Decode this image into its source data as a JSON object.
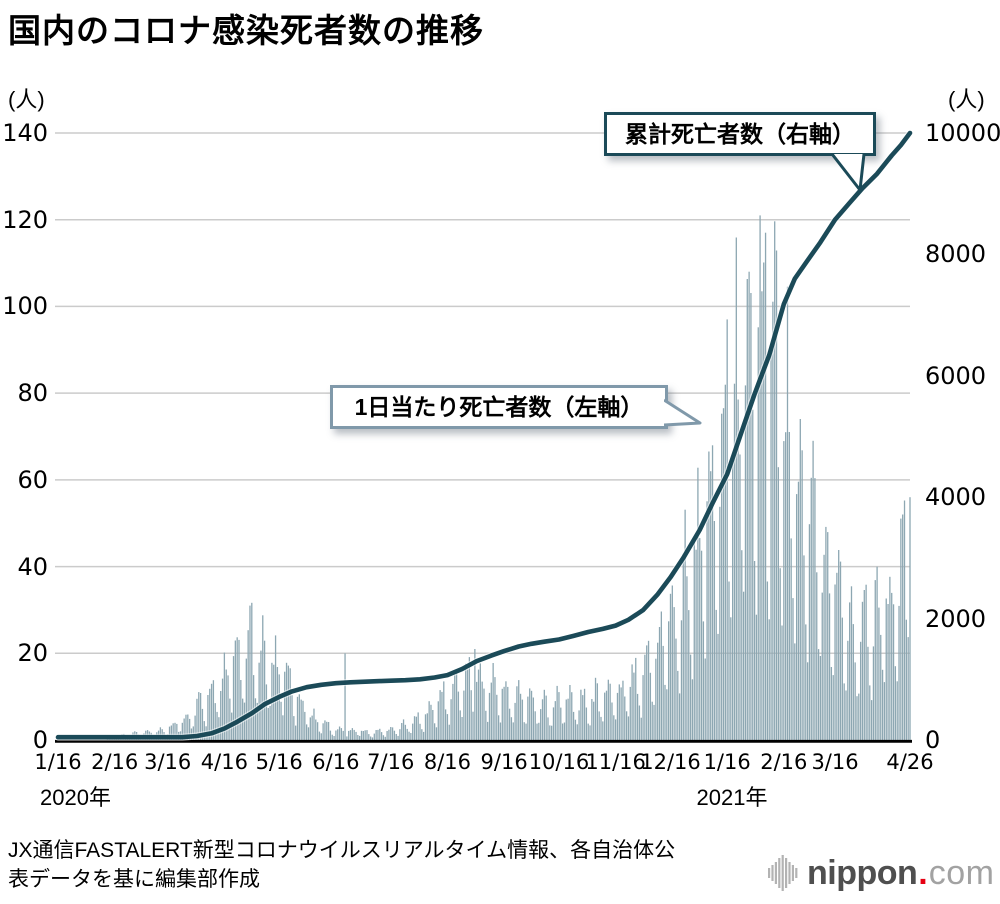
{
  "title": "国内のコロナ感染死者数の推移",
  "callouts": {
    "cumulative": "累計死亡者数（右軸）",
    "daily": "1日当たり死亡者数（左軸）"
  },
  "x_axis_years": [
    "2020年",
    "2021年"
  ],
  "source": {
    "line1": "JX通信FASTALERT新型コロナウイルスリアルタイム情報、各自治体公",
    "line2": "表データを基に編集部作成"
  },
  "branding": {
    "mark": "soundwave-icon",
    "name": "nippon",
    "dot": ".",
    "tld": "com",
    "color_name": "#4f4f4f",
    "color_dot": "#e60012",
    "color_tld": "#a2a2a2"
  },
  "chart_data": {
    "type": "bar+line",
    "title": "国内のコロナ感染死者数の推移",
    "x_start": "2020-01-16",
    "x_end": "2021-04-26",
    "x_range_days": 466,
    "grid_color": "#cbcbcb",
    "axis_color": "#000000",
    "background": "#ffffff",
    "left_axis": {
      "unit": "(人)",
      "min": 0,
      "max": 140,
      "tick_step": 20,
      "ticks": [
        0,
        20,
        40,
        60,
        80,
        100,
        120,
        140
      ]
    },
    "right_axis": {
      "unit": "(人)",
      "min": 0,
      "max": 10000,
      "tick_step": 2000,
      "ticks": [
        0,
        2000,
        4000,
        6000,
        8000,
        10000
      ]
    },
    "x_ticks": [
      {
        "day": 0,
        "label": "1/16"
      },
      {
        "day": 31,
        "label": "2/16"
      },
      {
        "day": 60,
        "label": "3/16"
      },
      {
        "day": 91,
        "label": "4/16"
      },
      {
        "day": 121,
        "label": "5/16"
      },
      {
        "day": 152,
        "label": "6/16"
      },
      {
        "day": 182,
        "label": "7/16"
      },
      {
        "day": 213,
        "label": "8/16"
      },
      {
        "day": 244,
        "label": "9/16"
      },
      {
        "day": 274,
        "label": "10/16"
      },
      {
        "day": 305,
        "label": "11/16"
      },
      {
        "day": 335,
        "label": "12/16"
      },
      {
        "day": 366,
        "label": "1/16"
      },
      {
        "day": 397,
        "label": "2/16"
      },
      {
        "day": 425,
        "label": "3/16"
      },
      {
        "day": 466,
        "label": "4/26"
      }
    ],
    "bar_series": {
      "name": "1日当たり死亡者数",
      "axis": "left",
      "color": "#8da7b2",
      "unit": "人",
      "envelope_anchors": [
        [
          0,
          0
        ],
        [
          24,
          0
        ],
        [
          32,
          1
        ],
        [
          45,
          2
        ],
        [
          58,
          3
        ],
        [
          68,
          6
        ],
        [
          78,
          11
        ],
        [
          88,
          17
        ],
        [
          95,
          23
        ],
        [
          102,
          28
        ],
        [
          106,
          30
        ],
        [
          111,
          26
        ],
        [
          117,
          22
        ],
        [
          122,
          21
        ],
        [
          128,
          15
        ],
        [
          134,
          10
        ],
        [
          141,
          6
        ],
        [
          148,
          4
        ],
        [
          156,
          3
        ],
        [
          164,
          3
        ],
        [
          172,
          2
        ],
        [
          180,
          3
        ],
        [
          188,
          4
        ],
        [
          196,
          6
        ],
        [
          204,
          9
        ],
        [
          212,
          13
        ],
        [
          220,
          16
        ],
        [
          228,
          19
        ],
        [
          236,
          16
        ],
        [
          244,
          14
        ],
        [
          252,
          13
        ],
        [
          260,
          12
        ],
        [
          268,
          10
        ],
        [
          276,
          12
        ],
        [
          284,
          11
        ],
        [
          292,
          12
        ],
        [
          300,
          13
        ],
        [
          308,
          14
        ],
        [
          316,
          18
        ],
        [
          324,
          23
        ],
        [
          332,
          32
        ],
        [
          340,
          43
        ],
        [
          348,
          56
        ],
        [
          355,
          68
        ],
        [
          361,
          80
        ],
        [
          366,
          90
        ],
        [
          372,
          100
        ],
        [
          378,
          108
        ],
        [
          384,
          118
        ],
        [
          390,
          112
        ],
        [
          396,
          100
        ],
        [
          402,
          86
        ],
        [
          408,
          74
        ],
        [
          414,
          62
        ],
        [
          420,
          52
        ],
        [
          426,
          45
        ],
        [
          432,
          38
        ],
        [
          438,
          31
        ],
        [
          444,
          34
        ],
        [
          450,
          38
        ],
        [
          456,
          44
        ],
        [
          461,
          50
        ],
        [
          466,
          57
        ]
      ],
      "spikes": [
        [
          105,
          31
        ],
        [
          157,
          20
        ],
        [
          228,
          21
        ],
        [
          366,
          97
        ],
        [
          378,
          108
        ],
        [
          384,
          121
        ],
        [
          387,
          117
        ],
        [
          462,
          52
        ],
        [
          466,
          56
        ]
      ],
      "peak": {
        "value": 121,
        "approx_date": "2021-02-03"
      }
    },
    "line_series": {
      "name": "累計死亡者数",
      "axis": "right",
      "color": "#1b4a58",
      "unit": "人",
      "points": [
        [
          0,
          0
        ],
        [
          28,
          1
        ],
        [
          40,
          4
        ],
        [
          50,
          10
        ],
        [
          60,
          29
        ],
        [
          68,
          45
        ],
        [
          76,
          66
        ],
        [
          84,
          110
        ],
        [
          91,
          190
        ],
        [
          98,
          300
        ],
        [
          106,
          440
        ],
        [
          113,
          590
        ],
        [
          121,
          710
        ],
        [
          128,
          800
        ],
        [
          136,
          870
        ],
        [
          144,
          910
        ],
        [
          152,
          935
        ],
        [
          160,
          950
        ],
        [
          168,
          960
        ],
        [
          176,
          970
        ],
        [
          182,
          977
        ],
        [
          190,
          985
        ],
        [
          198,
          1000
        ],
        [
          206,
          1030
        ],
        [
          213,
          1070
        ],
        [
          221,
          1170
        ],
        [
          229,
          1300
        ],
        [
          237,
          1390
        ],
        [
          244,
          1465
        ],
        [
          252,
          1540
        ],
        [
          259,
          1585
        ],
        [
          266,
          1620
        ],
        [
          274,
          1655
        ],
        [
          282,
          1715
        ],
        [
          290,
          1780
        ],
        [
          298,
          1830
        ],
        [
          305,
          1885
        ],
        [
          312,
          1980
        ],
        [
          320,
          2140
        ],
        [
          328,
          2400
        ],
        [
          335,
          2680
        ],
        [
          342,
          3000
        ],
        [
          351,
          3460
        ],
        [
          358,
          3900
        ],
        [
          366,
          4380
        ],
        [
          373,
          5000
        ],
        [
          381,
          5700
        ],
        [
          389,
          6340
        ],
        [
          397,
          7180
        ],
        [
          403,
          7600
        ],
        [
          409,
          7860
        ],
        [
          417,
          8200
        ],
        [
          425,
          8570
        ],
        [
          433,
          8850
        ],
        [
          440,
          9090
        ],
        [
          448,
          9330
        ],
        [
          456,
          9630
        ],
        [
          461,
          9800
        ],
        [
          466,
          10000
        ]
      ],
      "final": {
        "value": 10000,
        "date": "2021-04-26"
      }
    }
  }
}
